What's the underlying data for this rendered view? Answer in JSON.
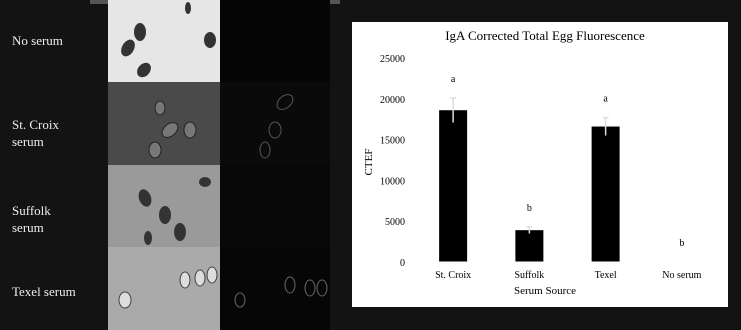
{
  "row_labels": [
    "No serum",
    "St. Croix serum",
    "Suffolk serum",
    "Texel serum"
  ],
  "chart_data": {
    "type": "bar",
    "title": "IgA Corrected Total Egg Fluorescence",
    "x_label": "Serum Source",
    "y_label": "CTEF",
    "categories": [
      "St. Croix",
      "Suffolk",
      "Texel",
      "No serum"
    ],
    "values": [
      18600,
      3900,
      16600,
      0
    ],
    "errors": [
      1500,
      400,
      1100,
      0
    ],
    "annotations": [
      "a",
      "b",
      "a",
      "b"
    ],
    "color": "#000000",
    "ylim": [
      0,
      25000
    ],
    "yticks": [
      0,
      5000,
      10000,
      15000,
      20000,
      25000
    ],
    "grid": false
  }
}
